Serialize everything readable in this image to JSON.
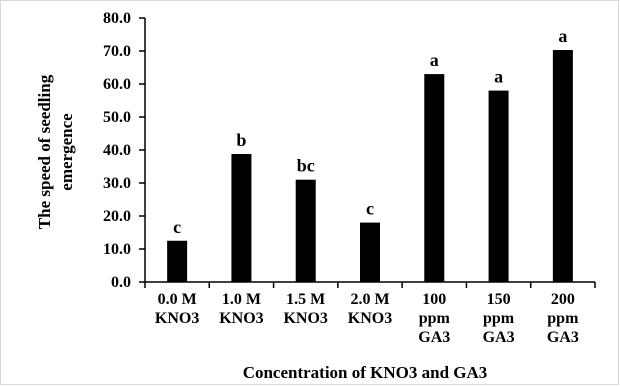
{
  "chart_data": {
    "type": "bar",
    "categories": [
      [
        "0.0 M",
        "KNO3"
      ],
      [
        "1.0 M",
        "KNO3"
      ],
      [
        "1.5 M",
        "KNO3"
      ],
      [
        "2.0 M",
        "KNO3"
      ],
      [
        "100",
        "ppm",
        "GA3"
      ],
      [
        "150",
        "ppm",
        "GA3"
      ],
      [
        "200",
        "ppm",
        "GA3"
      ]
    ],
    "values": [
      12.5,
      38.8,
      31.0,
      18.0,
      63.0,
      58.0,
      70.3
    ],
    "significance_letters": [
      "c",
      "b",
      "bc",
      "c",
      "a",
      "a",
      "a"
    ],
    "xlabel": "Concentration of KNO3 and GA3",
    "ylabel": [
      "The speed of seedling",
      "emergence"
    ],
    "ylim": [
      0,
      80
    ],
    "yticks": [
      "0.0",
      "10.0",
      "20.0",
      "30.0",
      "40.0",
      "50.0",
      "60.0",
      "70.0",
      "80.0"
    ],
    "bar_color": "#000000",
    "grid": false,
    "legend": "none"
  }
}
